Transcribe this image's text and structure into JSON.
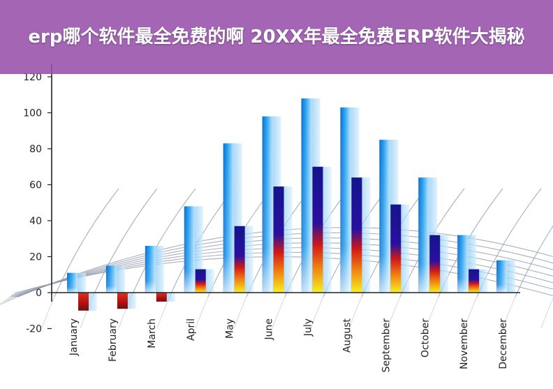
{
  "banner": {
    "title": "erp哪个软件最全免费的啊 20XX年最全免费ERP软件大揭秘"
  },
  "chart_data": {
    "type": "bar",
    "title": "",
    "xlabel": "",
    "ylabel": "",
    "ylim": [
      -20,
      120
    ],
    "yticks": [
      120,
      100,
      80,
      60,
      40,
      20,
      0,
      -20
    ],
    "grid": false,
    "categories": [
      "January",
      "February",
      "March",
      "April",
      "May",
      "June",
      "July",
      "August",
      "September",
      "October",
      "November",
      "December"
    ],
    "series": [
      {
        "values": [
          11,
          15,
          26,
          48,
          83,
          98,
          108,
          103,
          85,
          64,
          32,
          18
        ],
        "color": "#1a8fe0"
      },
      {
        "values": [
          -10,
          -9,
          -5,
          13,
          37,
          59,
          70,
          64,
          49,
          32,
          13,
          null
        ],
        "color": "#1a1aa0"
      }
    ]
  }
}
